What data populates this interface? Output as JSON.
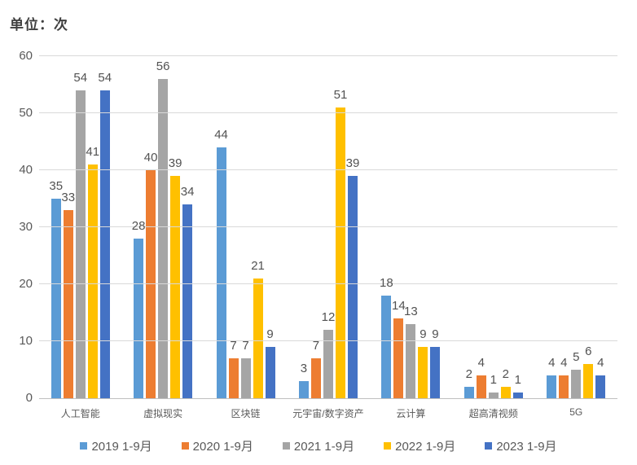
{
  "chart_data": {
    "type": "bar",
    "title": "单位：次",
    "categories": [
      "人工智能",
      "虚拟现实",
      "区块链",
      "元宇宙/数字资产",
      "云计算",
      "超高清视频",
      "5G"
    ],
    "series": [
      {
        "name": "2019 1-9月",
        "color": "#5B9BD5",
        "values": [
          35,
          28,
          44,
          3,
          18,
          2,
          4
        ]
      },
      {
        "name": "2020 1-9月",
        "color": "#ED7D31",
        "values": [
          33,
          40,
          7,
          7,
          14,
          4,
          4
        ]
      },
      {
        "name": "2021 1-9月",
        "color": "#A5A5A5",
        "values": [
          54,
          56,
          7,
          12,
          13,
          1,
          5
        ]
      },
      {
        "name": "2022 1-9月",
        "color": "#FFC000",
        "values": [
          41,
          39,
          21,
          51,
          9,
          2,
          6
        ]
      },
      {
        "name": "2023 1-9月",
        "color": "#4472C4",
        "values": [
          54,
          34,
          9,
          39,
          9,
          1,
          4
        ]
      }
    ],
    "ylim": [
      0,
      60
    ],
    "yticks": [
      0,
      10,
      20,
      30,
      40,
      50,
      60
    ],
    "grid": "horizontal",
    "legend_position": "bottom",
    "data_labels": true
  },
  "colors": {
    "background": "#FFFFFF",
    "gridline": "#D9D9D9",
    "axis_line": "#BFBFBF",
    "tick_text": "#595959",
    "data_label_text": "#525252",
    "title_text": "#404040"
  }
}
